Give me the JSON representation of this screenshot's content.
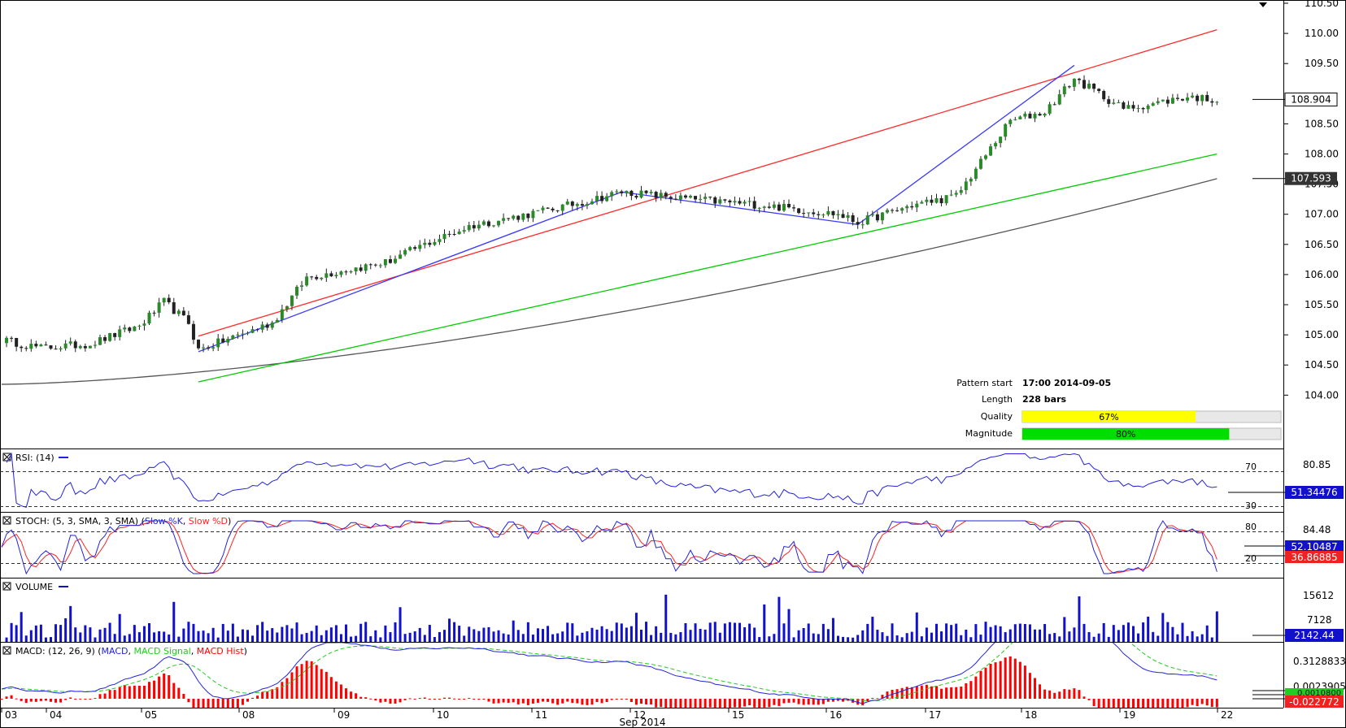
{
  "colors": {
    "up": "#2a8a2a",
    "down": "#222222",
    "resistance": "#ff2a2a",
    "support": "#00cc00",
    "zigzag": "#3a3aff",
    "ma": "#555555",
    "rsi": "#2222dd",
    "stoch_k": "#2222dd",
    "stoch_d": "#ff2222",
    "volume": "#1111cc",
    "macd": "#2222dd",
    "macd_signal": "#22cc22",
    "macd_hist": "#ff0000",
    "quality": "#ffff00",
    "magnitude": "#00dd00"
  },
  "chart_data": {
    "type": "candlestick",
    "instrument_period": "H1",
    "price_axis": {
      "range": [
        103.6,
        110.5
      ],
      "ticks": [
        "110.50",
        "110.00",
        "109.50",
        "108.50",
        "108.00",
        "107.50",
        "107.00",
        "106.50",
        "106.00",
        "105.50",
        "105.00",
        "104.50",
        "104.00"
      ]
    },
    "current_price": "108.904",
    "ma_value": "107.593",
    "x_axis": {
      "labels": [
        "03",
        "04",
        "05",
        "08",
        "09",
        "10",
        "11",
        "12",
        "15",
        "16",
        "17",
        "18",
        "19",
        "22"
      ],
      "month_label": "Sep 2014"
    },
    "pattern": {
      "type": "ascending channel",
      "resistance": [
        {
          "bar": 40,
          "price": 104.98
        },
        {
          "bar": 247,
          "price": 110.06
        }
      ],
      "support": [
        {
          "bar": 40,
          "price": 104.22
        },
        {
          "bar": 247,
          "price": 108.0
        }
      ],
      "zigzag": [
        {
          "bar": 40,
          "price": 104.72
        },
        {
          "bar": 126,
          "price": 107.37
        },
        {
          "bar": 174,
          "price": 106.83
        },
        {
          "bar": 218,
          "price": 109.47
        }
      ]
    },
    "pattern_info": {
      "start_label": "Pattern start",
      "start_value": "17:00 2014-09-05",
      "length_label": "Length",
      "length_value": "228 bars",
      "quality_label": "Quality",
      "quality_value": "67%",
      "quality": 67,
      "magnitude_label": "Magnitude",
      "magnitude_value": "80%",
      "magnitude": 80
    },
    "indicators": {
      "rsi": {
        "title": "RSI: (14)",
        "levels": [
          "70",
          "30"
        ],
        "scale_label": "80.85",
        "value": "51.34476"
      },
      "stoch": {
        "title": "STOCH: (5, 3, SMA, 3, SMA)",
        "k_label": "Slow %K",
        "d_label": "Slow %D",
        "levels": [
          "80",
          "20"
        ],
        "scale_label": "84.48",
        "k_value": "52.10487",
        "d_value": "36.86885"
      },
      "volume": {
        "title": "VOLUME",
        "ticks": [
          "15612",
          "7128"
        ],
        "value": "2142.44"
      },
      "macd": {
        "title": "MACD: (12, 26, 9)",
        "macd_label": "MACD",
        "signal_label": "MACD Signal",
        "hist_label": "MACD Hist",
        "scale_label": "0.3128833",
        "value1": "0.0023905",
        "value2": "0.0010800",
        "value3": "-0.022772"
      }
    }
  }
}
